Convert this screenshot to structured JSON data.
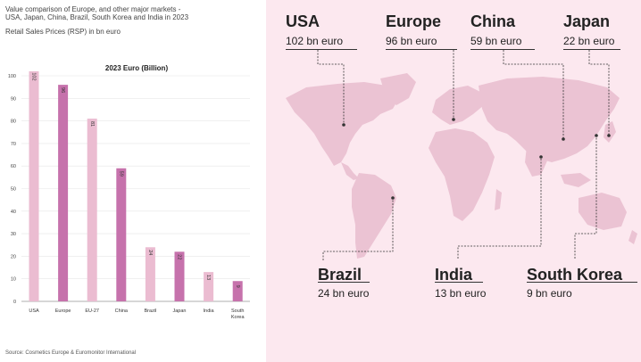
{
  "header": {
    "title_line1": "Value comparison of Europe, and other major markets -",
    "title_line2": "USA, Japan, China, Brazil, South Korea and India in 2023",
    "subtitle": "Retail Sales Prices (RSP) in bn euro"
  },
  "source": "Source: Cosmetics Europe & Euromonitor International",
  "chart_data": {
    "type": "bar",
    "title": "2023 Euro (Billion)",
    "categories": [
      "USA",
      "Europe",
      "EU-27",
      "China",
      "Brazil",
      "Japan",
      "India",
      "South Korea"
    ],
    "values": [
      102,
      96,
      81,
      59,
      24,
      22,
      13,
      9
    ],
    "ylim": [
      0,
      100
    ],
    "yticks": [
      0,
      10,
      20,
      30,
      40,
      50,
      60,
      70,
      80,
      90,
      100
    ],
    "grid": true,
    "colors": [
      "#ebbcd1",
      "#c672ac",
      "#ebbcd1",
      "#c672ac",
      "#ebbcd1",
      "#c672ac",
      "#ebbcd1",
      "#c672ac"
    ]
  },
  "map": {
    "land_color": "#ebc3d3",
    "labels": [
      {
        "country": "USA",
        "value": "102 bn euro"
      },
      {
        "country": "Europe",
        "value": "96 bn euro"
      },
      {
        "country": "China",
        "value": "59 bn euro"
      },
      {
        "country": "Japan",
        "value": "22 bn euro"
      },
      {
        "country": "Brazil",
        "value": "24 bn euro"
      },
      {
        "country": "India",
        "value": "13 bn euro"
      },
      {
        "country": "South Korea",
        "value": "9 bn euro"
      }
    ]
  }
}
